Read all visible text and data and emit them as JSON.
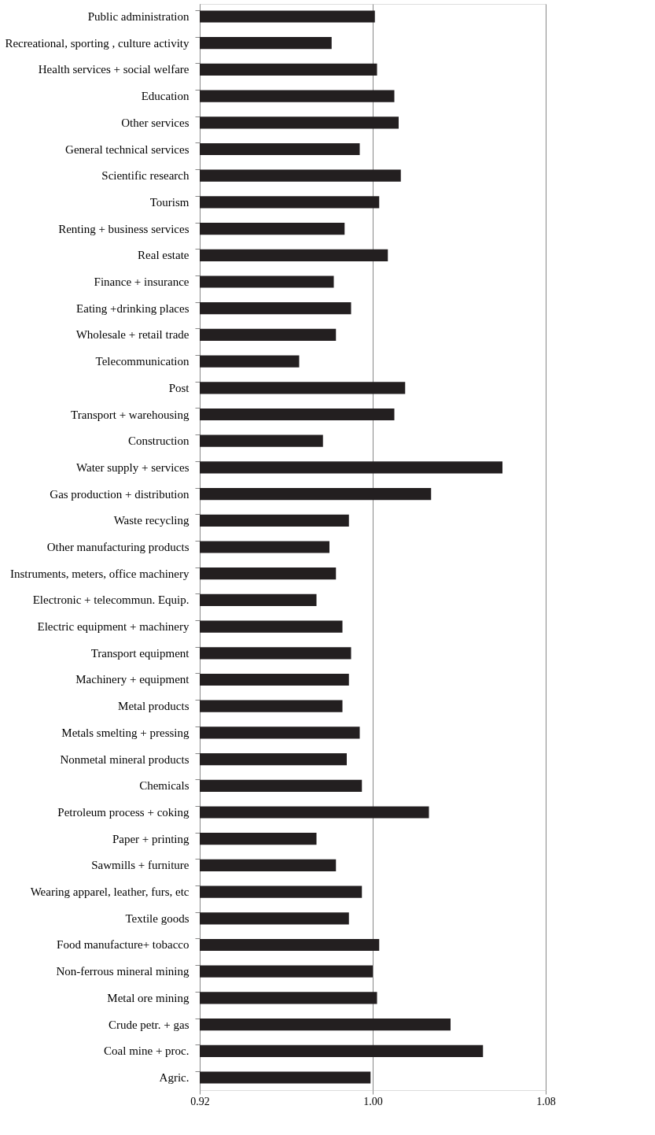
{
  "chart_data": {
    "type": "bar",
    "orientation": "horizontal",
    "categories": [
      "Public administration",
      "Recreational, sporting , culture activity",
      "Health services + social welfare",
      "Education",
      "Other services",
      "General technical services",
      "Scientific research",
      "Tourism",
      "Renting + business services",
      "Real estate",
      "Finance + insurance",
      "Eating +drinking places",
      "Wholesale + retail trade",
      "Telecommunication",
      "Post",
      "Transport + warehousing",
      "Construction",
      "Water supply + services",
      "Gas production + distribution",
      "Waste recycling",
      "Other manufacturing  products",
      "Instruments, meters,  office machinery",
      "Electronic + telecommun. Equip.",
      "Electric equipment + machinery",
      "Transport equipment",
      "Machinery + equipment",
      "Metal products",
      "Metals smelting + pressing",
      "Nonmetal mineral products",
      "Chemicals",
      "Petroleum process + coking",
      "Paper + printing",
      "Sawmills + furniture",
      "Wearing apparel, leather, furs, etc",
      "Textile goods",
      "Food manufacture+ tobacco",
      "Non-ferrous mineral mining",
      "Metal ore mining",
      "Crude petr.  + gas",
      "Coal mine +  proc.",
      "Agric."
    ],
    "values": [
      1.001,
      0.981,
      1.002,
      1.01,
      1.012,
      0.994,
      1.013,
      1.003,
      0.987,
      1.007,
      0.982,
      0.99,
      0.983,
      0.966,
      1.015,
      1.01,
      0.977,
      1.06,
      1.027,
      0.989,
      0.98,
      0.983,
      0.974,
      0.986,
      0.99,
      0.989,
      0.986,
      0.994,
      0.988,
      0.995,
      1.026,
      0.974,
      0.983,
      0.995,
      0.989,
      1.003,
      1.0,
      1.002,
      1.036,
      1.051,
      0.999
    ],
    "color": "#231f20",
    "xlim": [
      0.92,
      1.08
    ],
    "xticks": [
      {
        "value": 0.92,
        "label": "0.92"
      },
      {
        "value": 1.0,
        "label": "1.00"
      },
      {
        "value": 1.08,
        "label": "1.08"
      }
    ],
    "grid": "x"
  }
}
